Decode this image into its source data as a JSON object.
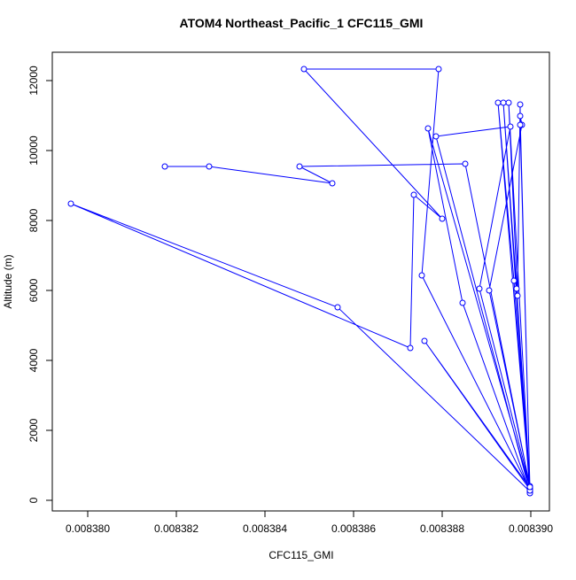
{
  "chart_data": {
    "type": "line",
    "title": "ATOM4 Northeast_Pacific_1 CFC115_GMI",
    "x_label": "CFC115_GMI",
    "y_label": "Altitude (m)",
    "markers": true,
    "color": "#0000ff",
    "x": [
      0.00838998,
      0.00838564,
      0.00837962,
      0.00838728,
      0.00838736,
      0.008388,
      0.00838488,
      0.00838792,
      0.00838754,
      0.00838998,
      0.0083876,
      0.00838998,
      0.00838768,
      0.00838846,
      0.00838998,
      0.00838786,
      0.00838954,
      0.00838884,
      0.00838998,
      0.00838906,
      0.0083898,
      0.00838976,
      0.00838998,
      0.00838926,
      0.00838962,
      0.00838998,
      0.00838938,
      0.00838968,
      0.00838998,
      0.0083895,
      0.0083897,
      0.00838976,
      0.00838976,
      0.00838998,
      0.00838852,
      0.00838478,
      0.00838552,
      0.00838274,
      0.00838174
    ],
    "values": [
      253,
      5519,
      8481,
      4354,
      8734,
      8051,
      12329,
      12329,
      6430,
      304,
      4557,
      354,
      10633,
      5646,
      228,
      10405,
      10684,
      6051,
      405,
      6000,
      10734,
      10987,
      329,
      11367,
      6278,
      203,
      11367,
      6051,
      278,
      11367,
      5848,
      11316,
      10734,
      380,
      9620,
      9544,
      9063,
      9544,
      9544
    ],
    "xlim": [
      0.0083792,
      0.00839042
    ],
    "ylim": [
      -304,
      12810
    ],
    "xticks": [
      {
        "value": 0.00838,
        "label": "0.008380"
      },
      {
        "value": 0.008382,
        "label": "0.008382"
      },
      {
        "value": 0.008384,
        "label": "0.008384"
      },
      {
        "value": 0.008386,
        "label": "0.008386"
      },
      {
        "value": 0.008388,
        "label": "0.008388"
      },
      {
        "value": 0.00839,
        "label": "0.008390"
      }
    ],
    "yticks": [
      0,
      2000,
      4000,
      6000,
      8000,
      10000,
      12000
    ]
  }
}
